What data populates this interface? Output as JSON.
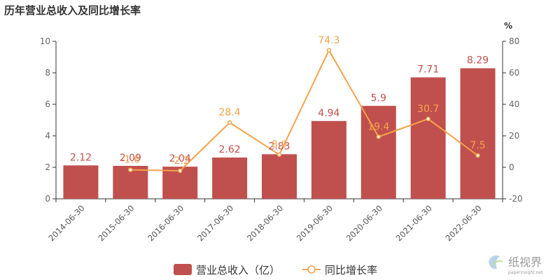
{
  "title": "历年营业总收入及同比增长率",
  "chart_data": {
    "type": "bar",
    "categories": [
      "2014-06-30",
      "2015-06-30",
      "2016-06-30",
      "2017-06-30",
      "2018-06-30",
      "2019-06-30",
      "2020-06-30",
      "2021-06-30",
      "2022-06-30"
    ],
    "series": [
      {
        "name": "营业总收入（亿）",
        "type": "bar",
        "axis": "left",
        "values": [
          2.12,
          2.09,
          2.04,
          2.62,
          2.83,
          4.94,
          5.9,
          7.71,
          8.29
        ],
        "labels": [
          "2.12",
          "2.09",
          "2.04",
          "2.62",
          "2.83",
          "4.94",
          "5.9",
          "7.71",
          "8.29"
        ],
        "color": "#c0504d"
      },
      {
        "name": "同比增长率",
        "type": "line",
        "axis": "right",
        "values": [
          null,
          -1.6,
          -2.2,
          28.4,
          8.0,
          74.3,
          19.4,
          30.7,
          7.5
        ],
        "labels": [
          "",
          "-1.6",
          "-2.2",
          "28.4",
          "8.0",
          "74.3",
          "19.4",
          "30.7",
          "7.5"
        ],
        "color": "#f6a24a"
      }
    ],
    "y_left": {
      "min": 0,
      "max": 10,
      "ticks": [
        0,
        2,
        4,
        6,
        8,
        10
      ]
    },
    "y_right": {
      "min": -20,
      "max": 80,
      "ticks": [
        -20,
        0,
        20,
        40,
        60,
        80
      ],
      "unit": "%"
    },
    "legend_position": "bottom-center",
    "grid": false
  },
  "watermark": {
    "text": "纸视界",
    "subtext": "paperinsight.net"
  }
}
